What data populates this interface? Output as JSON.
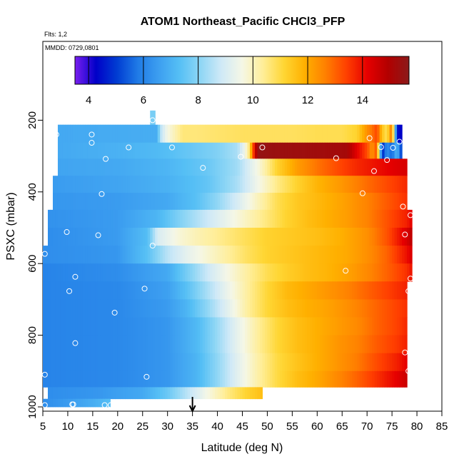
{
  "header": {
    "title": "ATOM1 Northeast_Pacific CHCl3_PFP",
    "flts_label": "Flts: 1,2",
    "mmdd_label": "MMDD: 0729,0801"
  },
  "chart_data": {
    "type": "heatmap",
    "title": "ATOM1 Northeast_Pacific CHCl3_PFP",
    "xlabel": "Latitude (deg N)",
    "ylabel": "PSXC (mbar)",
    "xlim": [
      5,
      85
    ],
    "ylim": [
      1000,
      0
    ],
    "x_ticks": [
      "5",
      "10",
      "15",
      "20",
      "25",
      "30",
      "35",
      "40",
      "45",
      "50",
      "55",
      "60",
      "65",
      "70",
      "75",
      "80",
      "85"
    ],
    "y_ticks": [
      "200",
      "400",
      "600",
      "800",
      "1000"
    ],
    "colorbar": {
      "range": [
        3.5,
        15.7
      ],
      "ticks": [
        "4",
        "6",
        "8",
        "10",
        "12",
        "14"
      ],
      "colors": [
        "#7a1ff0",
        "#0000c8",
        "#003cd2",
        "#1f7ae6",
        "#3c9ef0",
        "#55bff5",
        "#8ed6f5",
        "#cfe9f7",
        "#f5f7e6",
        "#ffee99",
        "#ffd634",
        "#ffb000",
        "#ff8000",
        "#ff4000",
        "#e60000",
        "#b20000",
        "#8b1a1a"
      ]
    },
    "marker": {
      "latitude": 35,
      "label": "arrow"
    },
    "profiles": [
      {
        "p": 185,
        "lat": [
          26.5,
          27.5
        ],
        "vals": [
          7.8,
          7.8
        ]
      },
      {
        "p": 240,
        "lat": [
          8,
          28,
          28.5,
          30,
          33,
          36,
          40,
          45,
          50,
          55,
          60,
          65,
          68,
          70,
          71,
          72,
          73,
          74,
          75,
          76,
          77
        ],
        "vals": [
          6.8,
          6.9,
          8.5,
          9.6,
          10.6,
          10.6,
          10.7,
          10.8,
          10.8,
          10.8,
          10.9,
          10.9,
          11.2,
          12.4,
          12.8,
          13.4,
          11.5,
          10.8,
          13,
          4.5,
          4.2
        ]
      },
      {
        "p": 285,
        "lat": [
          8,
          20,
          28,
          35,
          40,
          44,
          45.5,
          46.5,
          47,
          48,
          52,
          60,
          66,
          68,
          70,
          71,
          72,
          73,
          74,
          75,
          76,
          77
        ],
        "vals": [
          6.8,
          7,
          7.2,
          7.6,
          7.9,
          8.4,
          9.5,
          10.8,
          12.9,
          15.5,
          15.4,
          15.3,
          15.2,
          14.2,
          13.3,
          12.3,
          13.3,
          4.5,
          6.3,
          5.5,
          7.2,
          4.7
        ]
      },
      {
        "p": 330,
        "lat": [
          8,
          20,
          30,
          38,
          44,
          48,
          52,
          56,
          60,
          65,
          68,
          72,
          76,
          78
        ],
        "vals": [
          6.7,
          6.8,
          7.1,
          7.6,
          8.3,
          9.6,
          11.2,
          12.2,
          12.8,
          13.4,
          13.7,
          14,
          14.3,
          14.4
        ]
      },
      {
        "p": 380,
        "lat": [
          7,
          20,
          30,
          38,
          44,
          48,
          52,
          56,
          60,
          65,
          70,
          74,
          78
        ],
        "vals": [
          6.5,
          6.7,
          7,
          7.5,
          8.4,
          9.5,
          10.5,
          11.2,
          11.8,
          12.3,
          12.9,
          13.3,
          13.7
        ]
      },
      {
        "p": 425,
        "lat": [
          7,
          20,
          30,
          36,
          40,
          44,
          48,
          52,
          56,
          60,
          65,
          70,
          74,
          78
        ],
        "vals": [
          6.4,
          6.5,
          6.8,
          7.4,
          8.1,
          9,
          10,
          10.9,
          11.4,
          11.7,
          12.1,
          12.6,
          13.1,
          13.6
        ]
      },
      {
        "p": 475,
        "lat": [
          6,
          20,
          28,
          33,
          38,
          42,
          46,
          50,
          54,
          58,
          62,
          66,
          70,
          74,
          78,
          79
        ],
        "vals": [
          6.3,
          6.5,
          7.1,
          8,
          8.8,
          9.4,
          10,
          10.6,
          11.2,
          11.6,
          11.9,
          12.2,
          12.6,
          13.2,
          13.8,
          14.2
        ]
      },
      {
        "p": 525,
        "lat": [
          6,
          20,
          26,
          28,
          32,
          36,
          40,
          45,
          50,
          55,
          60,
          65,
          70,
          74,
          78,
          79
        ],
        "vals": [
          6.2,
          6.5,
          7.3,
          9,
          9.7,
          10.1,
          10.4,
          10.8,
          11.2,
          11.4,
          11.6,
          11.9,
          12.4,
          13.2,
          14.4,
          14.8
        ]
      },
      {
        "p": 575,
        "lat": [
          5,
          20,
          26,
          30,
          34,
          38,
          42,
          46,
          50,
          54,
          58,
          62,
          66,
          70,
          74,
          78,
          79
        ],
        "vals": [
          6.2,
          6.4,
          7.4,
          8.6,
          9.3,
          9.8,
          10.3,
          10.8,
          11.2,
          11.4,
          11.6,
          11.8,
          12,
          12.4,
          13,
          14,
          14.4
        ]
      },
      {
        "p": 625,
        "lat": [
          5,
          20,
          30,
          34,
          38,
          42,
          46,
          50,
          54,
          58,
          62,
          66,
          70,
          74,
          78,
          79
        ],
        "vals": [
          6,
          6.2,
          6.8,
          7.8,
          8.8,
          9.6,
          10.3,
          10.9,
          11.3,
          11.6,
          11.8,
          12.1,
          12.5,
          13,
          13.6,
          14
        ]
      },
      {
        "p": 675,
        "lat": [
          5,
          20,
          30,
          34,
          38,
          42,
          46,
          50,
          54,
          58,
          62,
          66,
          70,
          74,
          78
        ],
        "vals": [
          6,
          6.1,
          6.6,
          7.4,
          8.4,
          9.4,
          10.3,
          11.1,
          11.7,
          12,
          12.3,
          12.6,
          13,
          13.4,
          13.8
        ]
      },
      {
        "p": 725,
        "lat": [
          5,
          20,
          30,
          34,
          38,
          42,
          46,
          50,
          54,
          58,
          62,
          66,
          70,
          74,
          78
        ],
        "vals": [
          6,
          6.1,
          6.5,
          7.1,
          8.1,
          9.2,
          10.3,
          11.1,
          11.6,
          11.9,
          12.1,
          12.4,
          12.8,
          13.2,
          13.6
        ]
      },
      {
        "p": 775,
        "lat": [
          5,
          20,
          30,
          36,
          40,
          44,
          48,
          52,
          56,
          60,
          64,
          68,
          72,
          76,
          78
        ],
        "vals": [
          6,
          6.1,
          6.4,
          7.2,
          8.2,
          9.3,
          10.3,
          11.1,
          11.6,
          11.9,
          12.2,
          12.5,
          13,
          13.4,
          13.7
        ]
      },
      {
        "p": 825,
        "lat": [
          5,
          20,
          30,
          36,
          40,
          44,
          48,
          52,
          56,
          60,
          64,
          68,
          72,
          76,
          78
        ],
        "vals": [
          6,
          6.1,
          6.4,
          7.2,
          8.2,
          9.3,
          10.3,
          11.1,
          11.6,
          11.9,
          12.3,
          12.6,
          13.1,
          13.5,
          13.8
        ]
      },
      {
        "p": 875,
        "lat": [
          5,
          20,
          30,
          36,
          40,
          44,
          48,
          52,
          56,
          60,
          64,
          68,
          72,
          76,
          78
        ],
        "vals": [
          6,
          6.1,
          6.4,
          7.1,
          8.1,
          9.2,
          10.2,
          11,
          11.5,
          11.9,
          12.3,
          12.7,
          13.3,
          13.8,
          14.2
        ]
      },
      {
        "p": 925,
        "lat": [
          5,
          20,
          30,
          36,
          40,
          44,
          48,
          52,
          56,
          60,
          64,
          68,
          72,
          76,
          78
        ],
        "vals": [
          6,
          6.1,
          6.4,
          7.1,
          8.1,
          9.2,
          10.2,
          11,
          11.6,
          12,
          12.5,
          13,
          13.6,
          14.2,
          14.6
        ]
      },
      {
        "p": 965,
        "lat": [
          6,
          16,
          25,
          30,
          34,
          38,
          42,
          46,
          49
        ],
        "vals": [
          6.2,
          6.4,
          6.8,
          7.6,
          8.6,
          9.6,
          10.5,
          11.2,
          11.6
        ]
      },
      {
        "p": 990,
        "lat": [
          5,
          10,
          15,
          18.5
        ],
        "vals": [
          6.2,
          6.5,
          6.9,
          7.3
        ]
      }
    ],
    "samples": [
      {
        "lat": 27.0,
        "p": 200
      },
      {
        "lat": 7.7,
        "p": 240
      },
      {
        "lat": 14.8,
        "p": 240
      },
      {
        "lat": 70.5,
        "p": 250
      },
      {
        "lat": 76.5,
        "p": 260
      },
      {
        "lat": 14.8,
        "p": 263
      },
      {
        "lat": 22.2,
        "p": 276
      },
      {
        "lat": 30.9,
        "p": 276
      },
      {
        "lat": 49.0,
        "p": 276
      },
      {
        "lat": 72.8,
        "p": 275
      },
      {
        "lat": 75.2,
        "p": 277
      },
      {
        "lat": 44.7,
        "p": 302
      },
      {
        "lat": 63.8,
        "p": 306
      },
      {
        "lat": 17.6,
        "p": 308
      },
      {
        "lat": 74.0,
        "p": 311
      },
      {
        "lat": 37.1,
        "p": 333
      },
      {
        "lat": 71.4,
        "p": 342
      },
      {
        "lat": 16.8,
        "p": 406
      },
      {
        "lat": 69.1,
        "p": 404
      },
      {
        "lat": 77.2,
        "p": 441
      },
      {
        "lat": 78.7,
        "p": 465
      },
      {
        "lat": 9.8,
        "p": 512
      },
      {
        "lat": 16.1,
        "p": 521
      },
      {
        "lat": 77.6,
        "p": 519
      },
      {
        "lat": 27.0,
        "p": 550
      },
      {
        "lat": 5.4,
        "p": 573
      },
      {
        "lat": 65.7,
        "p": 620
      },
      {
        "lat": 11.5,
        "p": 637
      },
      {
        "lat": 78.7,
        "p": 642
      },
      {
        "lat": 25.4,
        "p": 670
      },
      {
        "lat": 10.3,
        "p": 677
      },
      {
        "lat": 78.3,
        "p": 677
      },
      {
        "lat": 19.4,
        "p": 737
      },
      {
        "lat": 11.5,
        "p": 822
      },
      {
        "lat": 77.6,
        "p": 848
      },
      {
        "lat": 78.3,
        "p": 900
      },
      {
        "lat": 5.4,
        "p": 910
      },
      {
        "lat": 25.8,
        "p": 916
      },
      {
        "lat": 5.4,
        "p": 995
      },
      {
        "lat": 10.9,
        "p": 993
      },
      {
        "lat": 11.1,
        "p": 993
      },
      {
        "lat": 17.4,
        "p": 995
      },
      {
        "lat": 18.6,
        "p": 995
      }
    ]
  }
}
